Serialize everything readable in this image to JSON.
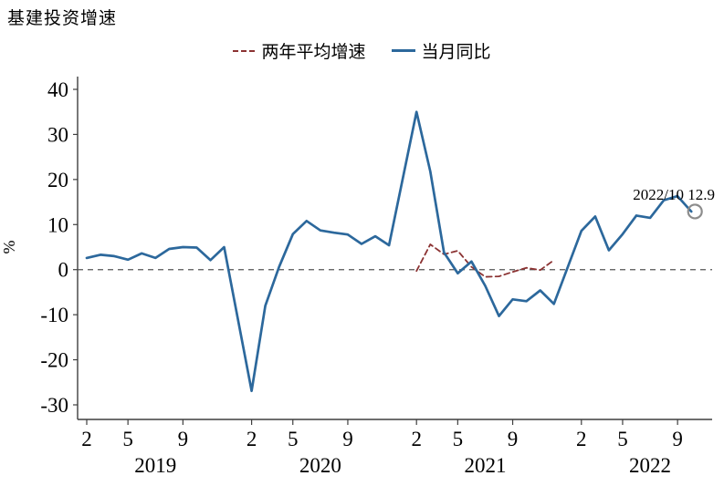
{
  "chart_data": {
    "type": "line",
    "title": "基建投资增速",
    "ylabel": "%",
    "ylim": [
      -30,
      40
    ],
    "yticks": [
      40,
      30,
      20,
      10,
      0,
      -10,
      -20,
      -30
    ],
    "zero_line": true,
    "grid": false,
    "legend_position": "top-center",
    "x_start_month": "2019-02",
    "x_end_month": "2022-10",
    "xticks": [
      {
        "month": "2019-02",
        "label": "2"
      },
      {
        "month": "2019-05",
        "label": "5"
      },
      {
        "month": "2019-09",
        "label": "9"
      },
      {
        "month": "2020-02",
        "label": "2"
      },
      {
        "month": "2020-05",
        "label": "5"
      },
      {
        "month": "2020-09",
        "label": "9"
      },
      {
        "month": "2021-02",
        "label": "2"
      },
      {
        "month": "2021-05",
        "label": "5"
      },
      {
        "month": "2021-09",
        "label": "9"
      },
      {
        "month": "2022-02",
        "label": "2"
      },
      {
        "month": "2022-05",
        "label": "5"
      },
      {
        "month": "2022-09",
        "label": "9"
      }
    ],
    "year_labels": [
      {
        "label": "2019",
        "center_month": "2019-07"
      },
      {
        "label": "2020",
        "center_month": "2020-07"
      },
      {
        "label": "2021",
        "center_month": "2021-07"
      },
      {
        "label": "2022",
        "center_month": "2022-07"
      }
    ],
    "series": [
      {
        "name": "两年平均增速",
        "style": "dashed",
        "color": "#8B3232",
        "points": [
          [
            "2021-02",
            -0.3
          ],
          [
            "2021-03",
            5.6
          ],
          [
            "2021-04",
            3.4
          ],
          [
            "2021-05",
            4.2
          ],
          [
            "2021-06",
            0.6
          ],
          [
            "2021-07",
            -1.6
          ],
          [
            "2021-08",
            -1.5
          ],
          [
            "2021-09",
            -0.5
          ],
          [
            "2021-10",
            0.4
          ],
          [
            "2021-11",
            -0.1
          ],
          [
            "2021-12",
            2.1
          ]
        ]
      },
      {
        "name": "当月同比",
        "style": "solid",
        "color": "#2C689C",
        "points": [
          [
            "2019-02",
            2.6
          ],
          [
            "2019-03",
            3.3
          ],
          [
            "2019-04",
            3.0
          ],
          [
            "2019-05",
            2.2
          ],
          [
            "2019-06",
            3.6
          ],
          [
            "2019-07",
            2.6
          ],
          [
            "2019-08",
            4.6
          ],
          [
            "2019-09",
            5.0
          ],
          [
            "2019-10",
            4.9
          ],
          [
            "2019-11",
            2.1
          ],
          [
            "2019-12",
            5.0
          ],
          [
            "2020-02",
            -26.9
          ],
          [
            "2020-03",
            -8.0
          ],
          [
            "2020-04",
            0.6
          ],
          [
            "2020-05",
            7.9
          ],
          [
            "2020-06",
            10.8
          ],
          [
            "2020-07",
            8.7
          ],
          [
            "2020-08",
            8.2
          ],
          [
            "2020-09",
            7.8
          ],
          [
            "2020-10",
            5.7
          ],
          [
            "2020-11",
            7.4
          ],
          [
            "2020-12",
            5.4
          ],
          [
            "2021-02",
            35.0
          ],
          [
            "2021-03",
            21.8
          ],
          [
            "2021-04",
            3.8
          ],
          [
            "2021-05",
            -0.8
          ],
          [
            "2021-06",
            1.8
          ],
          [
            "2021-07",
            -3.6
          ],
          [
            "2021-08",
            -10.3
          ],
          [
            "2021-09",
            -6.6
          ],
          [
            "2021-10",
            -7.0
          ],
          [
            "2021-11",
            -4.6
          ],
          [
            "2021-12",
            -7.6
          ],
          [
            "2022-02",
            8.6
          ],
          [
            "2022-03",
            11.8
          ],
          [
            "2022-04",
            4.3
          ],
          [
            "2022-05",
            7.9
          ],
          [
            "2022-06",
            12.0
          ],
          [
            "2022-07",
            11.5
          ],
          [
            "2022-08",
            15.4
          ],
          [
            "2022-09",
            16.3
          ],
          [
            "2022-10",
            12.9
          ]
        ]
      }
    ],
    "annotation": {
      "text": "2022/10 12.9",
      "month": "2022-10",
      "value": 12.9,
      "circle_color": "#8C8C8C"
    }
  }
}
